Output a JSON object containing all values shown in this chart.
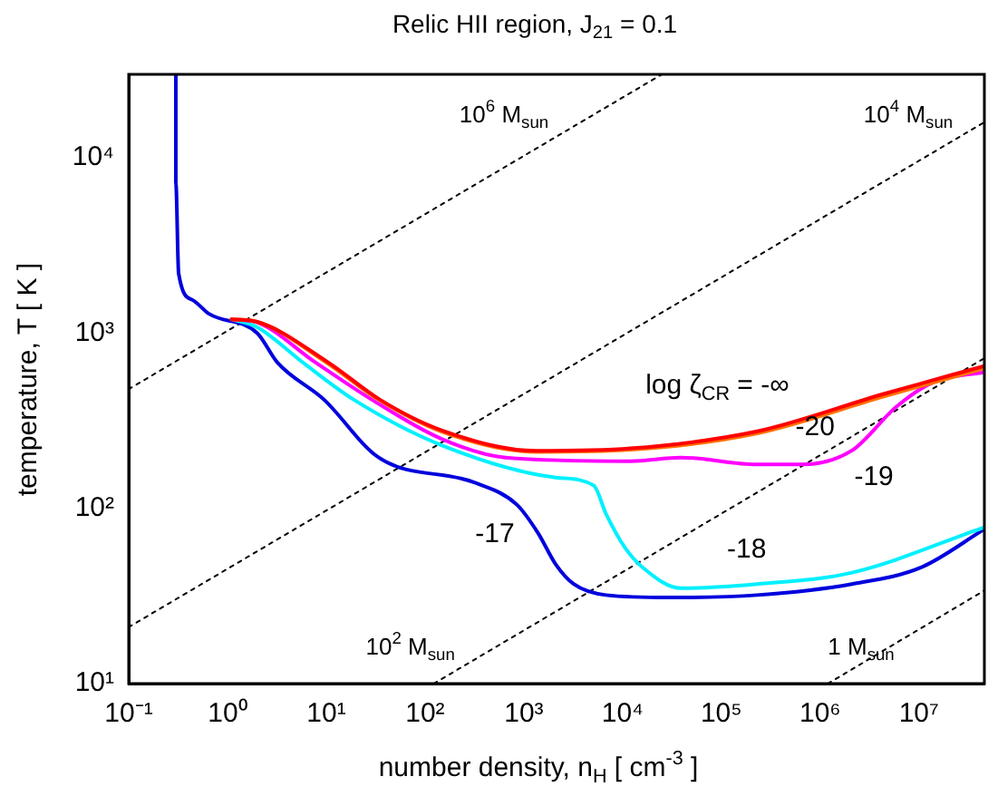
{
  "chart_data": {
    "type": "line",
    "title": "Relic HII region, J$_{21}$ = 0.1",
    "xlabel": "number density, n$_{H}$ [ cm$^{-3}$ ]",
    "ylabel": "temperature, T [ K ]",
    "log": "xy",
    "xlim": [
      0.1,
      46000000
    ],
    "ylim": [
      10,
      30000
    ],
    "xticks": [
      {
        "value": 0.1,
        "label": "10⁻¹"
      },
      {
        "value": 1,
        "label": "10⁰"
      },
      {
        "value": 10,
        "label": "10¹"
      },
      {
        "value": 100,
        "label": "10²"
      },
      {
        "value": 1000,
        "label": "10³"
      },
      {
        "value": 10000,
        "label": "10⁴"
      },
      {
        "value": 100000,
        "label": "10⁵"
      },
      {
        "value": 1000000,
        "label": "10⁶"
      },
      {
        "value": 10000000,
        "label": "10⁷"
      }
    ],
    "yticks": [
      {
        "value": 10,
        "label": "10¹"
      },
      {
        "value": 100,
        "label": "10²"
      },
      {
        "value": 1000,
        "label": "10³"
      },
      {
        "value": 10000,
        "label": "10⁴"
      }
    ],
    "series": [
      {
        "name": "log ζ$_{CR}$ = -∞",
        "color": "#ff0000",
        "x": [
          1.1,
          2,
          10.5,
          35,
          145,
          1350,
          12000,
          230000,
          4400000,
          46000000
        ],
        "values": [
          1200,
          1160,
          680,
          417,
          280,
          213,
          220,
          275,
          450,
          650
        ]
      },
      {
        "name": "-20",
        "color": "#ff7000",
        "x": [
          1.1,
          2,
          10,
          34,
          145,
          1350,
          12000,
          230000,
          4400000,
          46000000
        ],
        "values": [
          1200,
          1160,
          680,
          417,
          275,
          210,
          216,
          268,
          435,
          630
        ]
      },
      {
        "name": "-19",
        "color": "#ff00ff",
        "x": [
          1.1,
          2,
          7.8,
          29,
          145,
          650,
          12000,
          39000,
          230000,
          650000,
          2100000,
          5900000,
          14000000,
          46000000
        ],
        "values": [
          1200,
          1150,
          680,
          417,
          250,
          195,
          186,
          195,
          178,
          178,
          214,
          380,
          525,
          600
        ]
      },
      {
        "name": "-18",
        "color": "#00f0ff",
        "x": [
          1.1,
          2,
          5.8,
          19,
          145,
          2100,
          5100,
          6800,
          10500,
          16000,
          39000,
          230000,
          2100000,
          46000000
        ],
        "values": [
          1200,
          1080,
          680,
          417,
          230,
          150,
          135,
          93,
          60,
          46,
          35,
          37,
          43,
          78
        ]
      },
      {
        "name": "-17",
        "color": "#0000dd",
        "x": [
          0.3,
          0.3,
          0.32,
          0.44,
          0.65,
          2,
          3.2,
          9.5,
          34,
          310,
          850,
          1400,
          2100,
          3200,
          6800,
          30000,
          230000,
          2100000,
          10500000,
          46000000
        ],
        "values": [
          30000,
          7200,
          2200,
          1550,
          1290,
          1000,
          680,
          417,
          195,
          141,
          105,
          72,
          48,
          37,
          32,
          31,
          32,
          37,
          46,
          76
        ]
      },
      {
        "name": "10$^{6}$ M$_{sun}$",
        "color": "#000000",
        "line_style": "dotted",
        "x": [
          0.1,
          25000
        ],
        "values": [
          479,
          30000
        ]
      },
      {
        "name": "10$^{4}$ M$_{sun}$",
        "color": "#000000",
        "line_style": "dotted",
        "x": [
          0.1,
          46000000
        ],
        "values": [
          21,
          16000
        ]
      },
      {
        "name": "10$^{2}$ M$_{sun}$",
        "color": "#000000",
        "line_style": "dotted",
        "x": [
          123,
          46000000
        ],
        "values": [
          10,
          720
        ]
      },
      {
        "name": "1 M$_{sun}$",
        "color": "#000000",
        "line_style": "dotted",
        "x": [
          1200000,
          46000000
        ],
        "values": [
          10,
          34
        ]
      }
    ]
  }
}
